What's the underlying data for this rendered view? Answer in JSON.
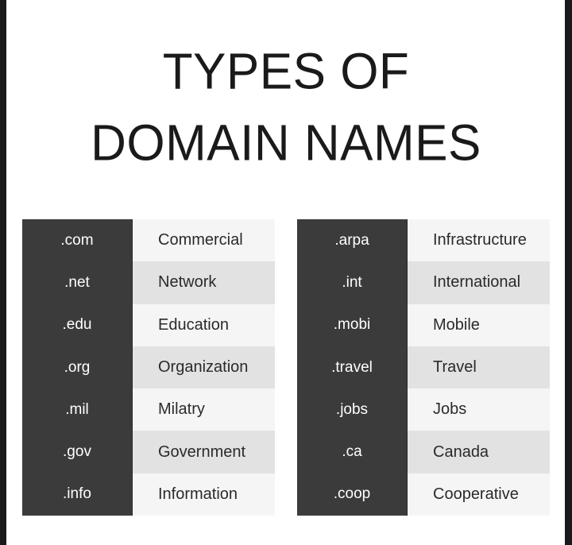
{
  "title": {
    "line1": "TYPES OF",
    "line2": "DOMAIN NAMES"
  },
  "left_table": [
    {
      "ext": ".com",
      "desc": "Commercial"
    },
    {
      "ext": ".net",
      "desc": "Network"
    },
    {
      "ext": ".edu",
      "desc": "Education"
    },
    {
      "ext": ".org",
      "desc": "Organization"
    },
    {
      "ext": ".mil",
      "desc": "Milatry"
    },
    {
      "ext": ".gov",
      "desc": "Government"
    },
    {
      "ext": ".info",
      "desc": "Information"
    }
  ],
  "right_table": [
    {
      "ext": ".arpa",
      "desc": "Infrastructure"
    },
    {
      "ext": ".int",
      "desc": "International"
    },
    {
      "ext": ".mobi",
      "desc": "Mobile"
    },
    {
      "ext": ".travel",
      "desc": "Travel"
    },
    {
      "ext": ".jobs",
      "desc": "Jobs"
    },
    {
      "ext": ".ca",
      "desc": "Canada"
    },
    {
      "ext": ".coop",
      "desc": "Cooperative"
    }
  ],
  "colors": {
    "ext_cell": "#3b3b3b",
    "desc_light": "#f5f5f5",
    "desc_dark": "#e2e2e2"
  }
}
